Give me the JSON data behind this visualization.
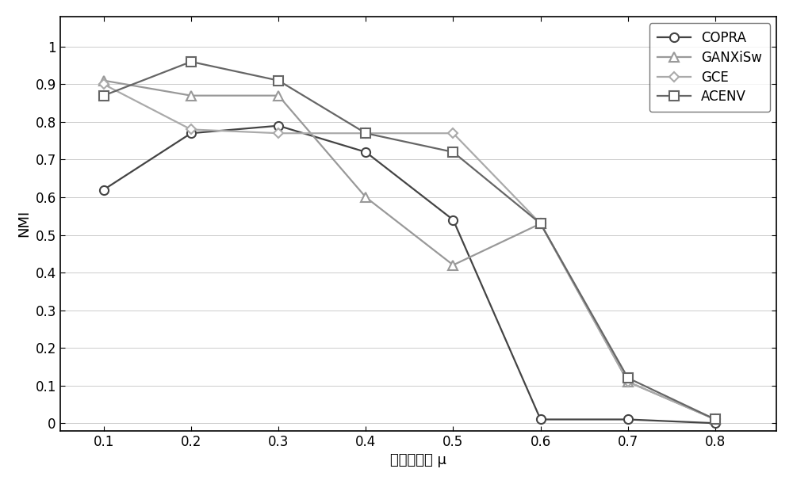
{
  "x": [
    0.1,
    0.2,
    0.3,
    0.4,
    0.5,
    0.6,
    0.7,
    0.8
  ],
  "COPRA": [
    0.62,
    0.77,
    0.79,
    0.72,
    0.54,
    0.01,
    0.01,
    0.0
  ],
  "GANXiSw": [
    0.91,
    0.87,
    0.87,
    0.6,
    0.42,
    0.53,
    0.11,
    0.01
  ],
  "GCE": [
    0.9,
    0.78,
    0.77,
    0.77,
    0.77,
    0.53,
    0.11,
    0.01
  ],
  "ACENV": [
    0.87,
    0.96,
    0.91,
    0.77,
    0.72,
    0.53,
    0.12,
    0.01
  ],
  "xlabel": "混合度参数 μ",
  "ylabel": "NMI",
  "xlim": [
    0.05,
    0.87
  ],
  "ylim": [
    -0.02,
    1.08
  ],
  "yticks": [
    0.0,
    0.1,
    0.2,
    0.3,
    0.4,
    0.5,
    0.6,
    0.7,
    0.8,
    0.9,
    1.0
  ],
  "xticks": [
    0.1,
    0.2,
    0.3,
    0.4,
    0.5,
    0.6,
    0.7,
    0.8
  ],
  "copra_color": "#444444",
  "ganxisw_color": "#999999",
  "gce_color": "#aaaaaa",
  "acenv_color": "#666666",
  "legend_labels": [
    "COPRA",
    "GANXiSw",
    "GCE",
    "ACENV"
  ],
  "axis_fontsize": 13,
  "tick_fontsize": 12,
  "legend_fontsize": 12,
  "linewidth": 1.6,
  "markersize": 8
}
